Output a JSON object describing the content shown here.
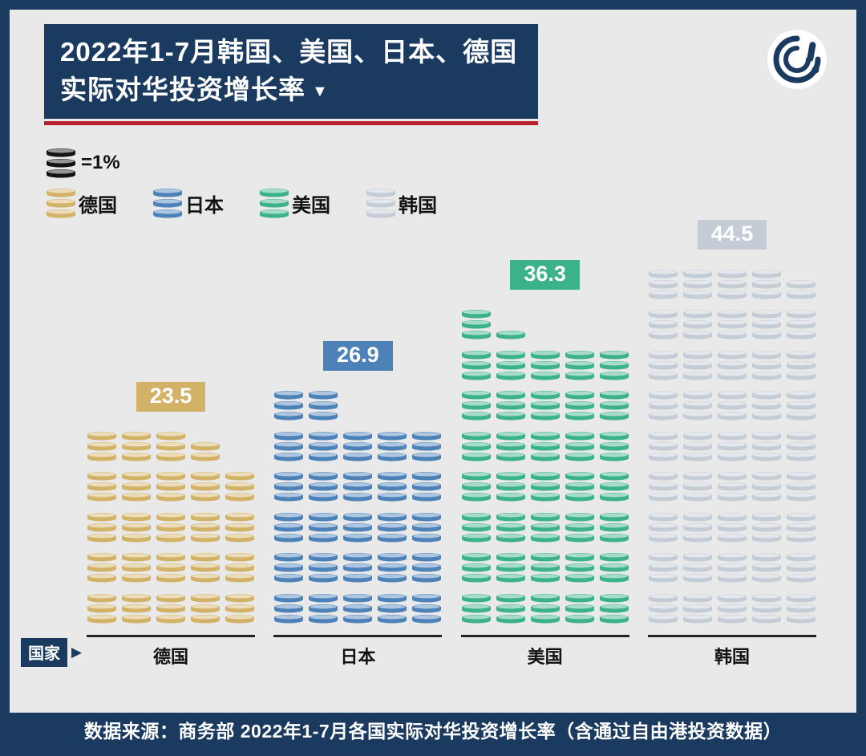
{
  "header": {
    "title_line1": "2022年1-7月韩国、美国、日本、德国",
    "title_line2": "实际对华投资增长率",
    "title_arrow": "▼"
  },
  "legend": {
    "unit_label": "=1%"
  },
  "axis": {
    "label": "国家",
    "arrow": "▶"
  },
  "chart_data": {
    "type": "pictogram-bar",
    "title": "2022年1-7月韩国、美国、日本、德国实际对华投资增长率",
    "unit_per_icon": "1%",
    "icons_per_row": 5,
    "categories": [
      "德国",
      "日本",
      "美国",
      "韩国"
    ],
    "values": [
      23.5,
      26.9,
      36.3,
      44.5
    ],
    "colors": [
      "#d2b267",
      "#4d82b8",
      "#3cb28a",
      "#c4ccd6"
    ],
    "xlabel": "国家",
    "legend_position": "top-left",
    "grid": false
  },
  "footer": {
    "source": "数据来源：商务部 2022年1-7月各国实际对华投资增长率（含通过自由港投资数据）"
  },
  "colors": {
    "navy": "#1b3a60",
    "red": "#b7222d",
    "background": "#e9e9ea",
    "unit_icon_color": "#141414",
    "badge_text": "#ffffff"
  }
}
